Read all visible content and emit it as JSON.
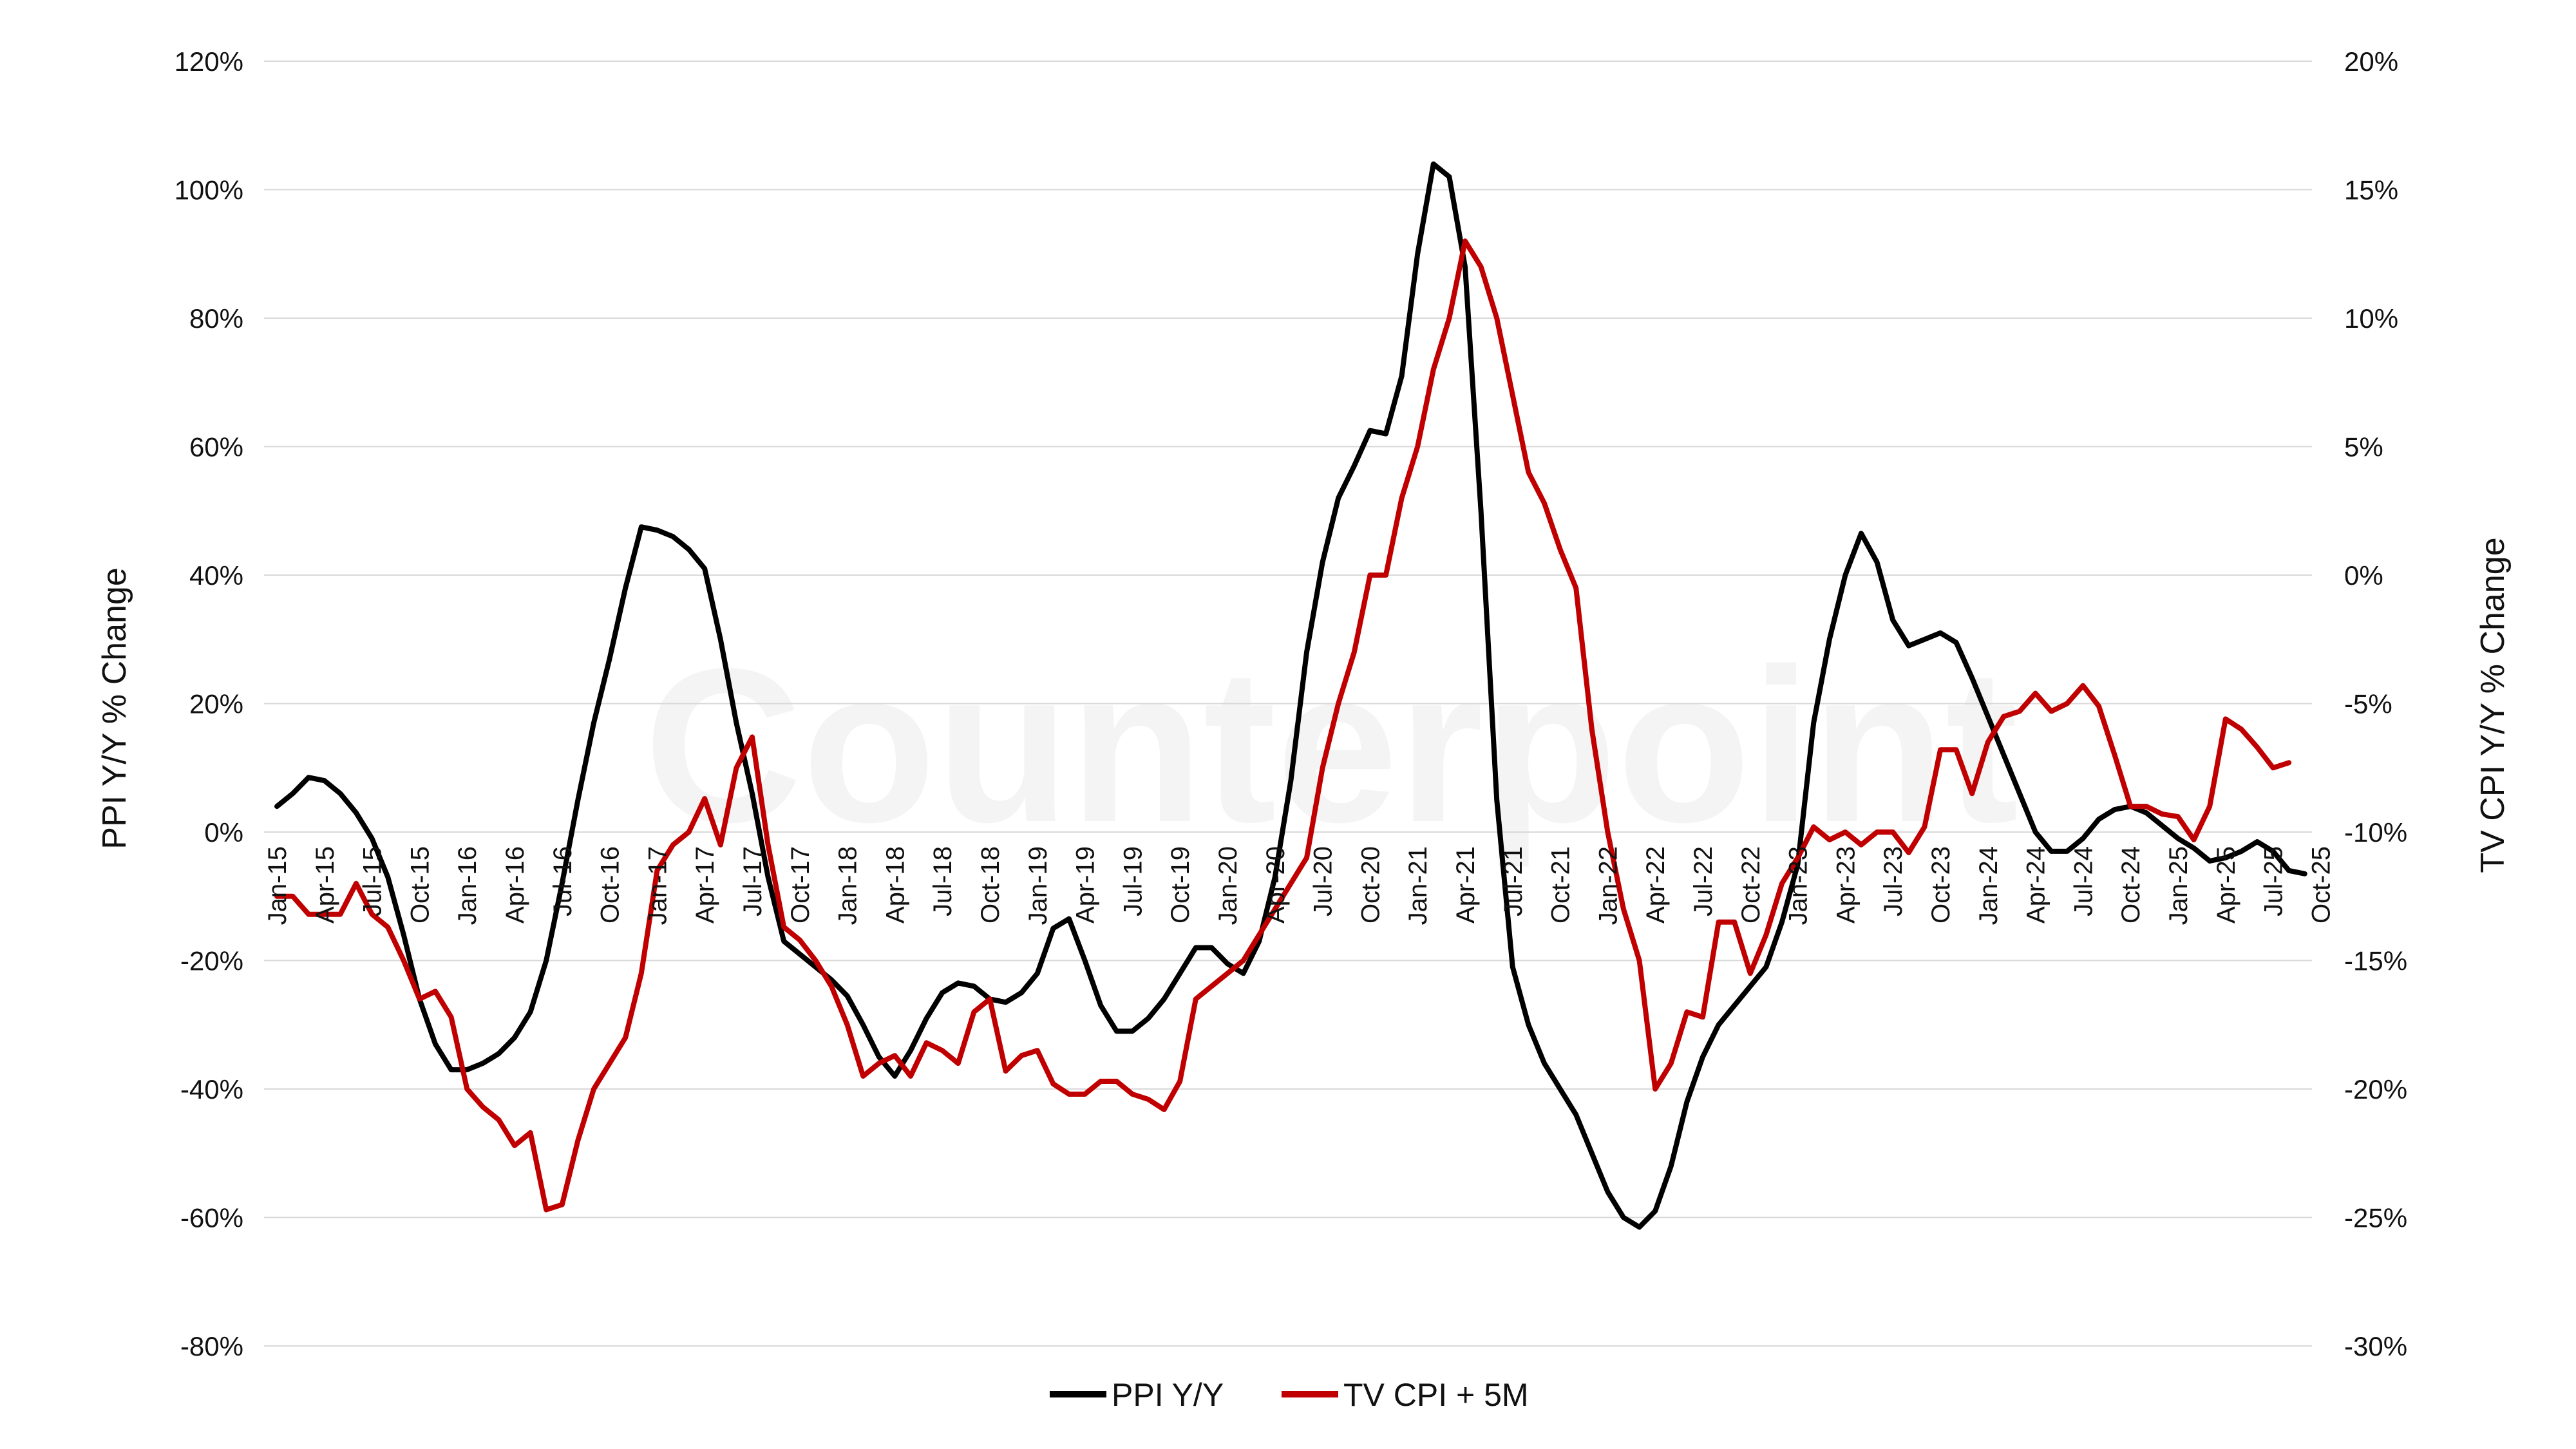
{
  "chart_data": {
    "type": "line",
    "watermark": "Counterpoint",
    "ylabel_left": "PPI Y/Y % Change",
    "ylabel_right": "TV CPI Y/Y % Change",
    "ylim_left": [
      -80,
      120
    ],
    "ylim_right": [
      -30,
      20
    ],
    "yticks_left": [
      "120%",
      "100%",
      "80%",
      "60%",
      "40%",
      "20%",
      "0%",
      "-20%",
      "-40%",
      "-60%",
      "-80%"
    ],
    "yticks_right": [
      "20%",
      "15%",
      "10%",
      "5%",
      "0%",
      "-5%",
      "-10%",
      "-15%",
      "-20%",
      "-25%",
      "-30%"
    ],
    "grid": true,
    "legend_position": "bottom",
    "x_tick_labels": [
      "Jan-15",
      "Apr-15",
      "Jul-15",
      "Oct-15",
      "Jan-16",
      "Apr-16",
      "Jul-16",
      "Oct-16",
      "Jan-17",
      "Apr-17",
      "Jul-17",
      "Oct-17",
      "Jan-18",
      "Apr-18",
      "Jul-18",
      "Oct-18",
      "Jan-19",
      "Apr-19",
      "Jul-19",
      "Oct-19",
      "Jan-20",
      "Apr-20",
      "Jul-20",
      "Oct-20",
      "Jan-21",
      "Apr-21",
      "Jul-21",
      "Oct-21",
      "Jan-22",
      "Apr-22",
      "Jul-22",
      "Oct-22",
      "Jan-23",
      "Apr-23",
      "Jul-23",
      "Oct-23",
      "Jan-24",
      "Apr-24",
      "Jul-24",
      "Oct-24",
      "Jan-25",
      "Apr-25",
      "Jul-25",
      "Oct-25"
    ],
    "series": [
      {
        "name": "PPI Y/Y",
        "axis": "left",
        "color": "#000000",
        "start": "Jan-15",
        "values": [
          4,
          6,
          8.5,
          8,
          6,
          3,
          -1,
          -7,
          -16,
          -26,
          -33,
          -37,
          -37,
          -36,
          -34.5,
          -32,
          -28,
          -20,
          -8,
          5,
          17,
          27,
          38,
          47.5,
          47,
          46,
          44,
          41,
          30,
          17,
          6,
          -7,
          -17,
          -19,
          -21,
          -23,
          -25.5,
          -30,
          -35,
          -38,
          -34,
          -29,
          -25,
          -23.5,
          -24,
          -26,
          -26.5,
          -25,
          -22,
          -15,
          -13.5,
          -20,
          -27,
          -31,
          -31,
          -29,
          -26,
          -22,
          -18,
          -18,
          -20.5,
          -22,
          -17,
          -7,
          8,
          28,
          42,
          52,
          57,
          62.5,
          62,
          71,
          90,
          104,
          102,
          88,
          50,
          5,
          -21,
          -30,
          -36,
          -40,
          -44,
          -50,
          -56,
          -60,
          -61.5,
          -59,
          -52,
          -42,
          -35,
          -30,
          -27,
          -24,
          -21,
          -14,
          -5,
          17,
          30,
          40,
          46.5,
          42,
          33,
          29,
          30,
          31,
          29.5,
          24,
          18,
          12,
          6,
          0,
          -3,
          -3,
          -1,
          2,
          3.5,
          4,
          3,
          1,
          -1,
          -2.5,
          -4.5,
          -4,
          -3,
          -1.5,
          -3,
          -6,
          -6.5
        ]
      },
      {
        "name": "TV CPI + 5M",
        "axis": "right",
        "color": "#c00000",
        "start": "Jan-15",
        "values": [
          -12.5,
          -12.5,
          -13.2,
          -13.2,
          -13.2,
          -12,
          -13.2,
          -13.7,
          -15,
          -16.5,
          -16.2,
          -17.2,
          -20,
          -20.7,
          -21.2,
          -22.2,
          -21.7,
          -24.7,
          -24.5,
          -22,
          -20,
          -19,
          -18,
          -15.5,
          -11.5,
          -10.5,
          -10,
          -8.7,
          -10.5,
          -7.5,
          -6.3,
          -10.5,
          -13.7,
          -14.2,
          -15,
          -16,
          -17.5,
          -19.5,
          -19,
          -18.7,
          -19.5,
          -18.2,
          -18.5,
          -19,
          -17,
          -16.5,
          -19.3,
          -18.7,
          -18.5,
          -19.8,
          -20.2,
          -20.2,
          -19.7,
          -19.7,
          -20.2,
          -20.4,
          -20.8,
          -19.7,
          -16.5,
          -16,
          -15.5,
          -15,
          -14,
          -13,
          -12,
          -11,
          -7.5,
          -5,
          -3,
          0,
          0,
          3,
          5,
          8,
          10,
          13,
          12,
          10,
          7,
          4,
          2.8,
          1,
          -0.5,
          -6,
          -10,
          -13,
          -15,
          -20,
          -19,
          -17,
          -17.2,
          -13.5,
          -13.5,
          -15.5,
          -14,
          -12,
          -11,
          -9.8,
          -10.3,
          -10,
          -10.5,
          -10,
          -10,
          -10.8,
          -9.8,
          -6.8,
          -6.8,
          -8.5,
          -6.5,
          -5.5,
          -5.3,
          -4.6,
          -5.3,
          -5,
          -4.3,
          -5.1,
          -7,
          -9,
          -9,
          -9.3,
          -9.4,
          -10.3,
          -9,
          -5.6,
          -6,
          -6.7,
          -7.5,
          -7.3
        ]
      }
    ]
  }
}
